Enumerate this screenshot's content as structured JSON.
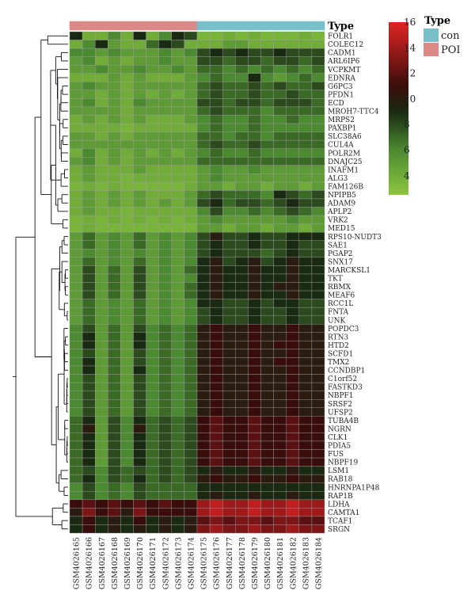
{
  "chart_data": {
    "type": "heatmap",
    "annotation_title": "Type",
    "legend_title": "Type",
    "groups": [
      {
        "name": "con",
        "color": "#79bfc8"
      },
      {
        "name": "POI",
        "color": "#db8a88"
      }
    ],
    "colorbar_ticks": [
      4,
      6,
      8,
      10,
      12,
      14,
      16
    ],
    "color_range": [
      2.5,
      16
    ],
    "color_stops": [
      {
        "value": 2.5,
        "color": "#8cc63f"
      },
      {
        "value": 6,
        "color": "#4c8a32"
      },
      {
        "value": 9,
        "color": "#1a2a12"
      },
      {
        "value": 11,
        "color": "#3a0d0d"
      },
      {
        "value": 16,
        "color": "#e02323"
      }
    ],
    "columns": [
      "GSM4026165",
      "GSM4026166",
      "GSM4026167",
      "GSM4026168",
      "GSM4026169",
      "GSM4026170",
      "GSM4026171",
      "GSM4026172",
      "GSM4026173",
      "GSM4026174",
      "GSM4026175",
      "GSM4026176",
      "GSM4026177",
      "GSM4026178",
      "GSM4026179",
      "GSM4026180",
      "GSM4026181",
      "GSM4026182",
      "GSM4026183",
      "GSM4026184"
    ],
    "column_groups": [
      "POI",
      "POI",
      "POI",
      "POI",
      "POI",
      "POI",
      "POI",
      "POI",
      "POI",
      "POI",
      "con",
      "con",
      "con",
      "con",
      "con",
      "con",
      "con",
      "con",
      "con",
      "con"
    ],
    "rows": [
      "FOLR1",
      "COLEC12",
      "CADM1",
      "ARL6IP6",
      "VCPKMT",
      "EDNRA",
      "G6PC3",
      "PFDN1",
      "ECD",
      "MROH7-TTC4",
      "MRPS2",
      "PAXBP1",
      "SLC38A6",
      "CUL4A",
      "POLR2M",
      "DNAJC25",
      "INAFM1",
      "ALG3",
      "FAM126B",
      "NPIPB5",
      "ADAM9",
      "APLP2",
      "VRK2",
      "MED15",
      "RPS10-NUDT3",
      "SAE1",
      "PGAP2",
      "SNX17",
      "MARCKSL1",
      "TKT",
      "RBMX",
      "MEAF6",
      "RCC1L",
      "FNTA",
      "UNK",
      "POPDC3",
      "RTN3",
      "HTD2",
      "SCFD1",
      "TMX2",
      "CCNDBP1",
      "C1orf52",
      "FASTKD3",
      "NBPF1",
      "SRSF2",
      "UFSP2",
      "TUBA4B",
      "NGRN",
      "CLK1",
      "PDIA5",
      "FUS",
      "NBPF19",
      "LSM1",
      "RAB18",
      "HNRNPA1P48",
      "RAP1B",
      "LDHA",
      "CAMTA1",
      "TCAF1",
      "SRGN"
    ],
    "values": [
      [
        9,
        4,
        4,
        6,
        4,
        9,
        4,
        6,
        9,
        8,
        3.5,
        3.5,
        4,
        3.5,
        4,
        3.5,
        3.5,
        3.5,
        4,
        3.5
      ],
      [
        4,
        6,
        9,
        5,
        4,
        4,
        7,
        9,
        8,
        4,
        4,
        4,
        5,
        5,
        4,
        4,
        4,
        4,
        4,
        4
      ],
      [
        6,
        6,
        5,
        6,
        5,
        5,
        5,
        6,
        5,
        6,
        8,
        9,
        8,
        9,
        8,
        8,
        9,
        8,
        8,
        8
      ],
      [
        5,
        6,
        4,
        5,
        4,
        5,
        5,
        6,
        5,
        5,
        8,
        8,
        7,
        8,
        8,
        7,
        8,
        8,
        7,
        8
      ],
      [
        5,
        5,
        6,
        5,
        5,
        6,
        5,
        5,
        6,
        5,
        7,
        7,
        6,
        7,
        6,
        7,
        6,
        7,
        6,
        7
      ],
      [
        4,
        4,
        4,
        5,
        4,
        5,
        4,
        4,
        4,
        5,
        6,
        7,
        6,
        6,
        9,
        6,
        5,
        6,
        7,
        6
      ],
      [
        5,
        6,
        5,
        5,
        4,
        5,
        5,
        5,
        5,
        5,
        7,
        8,
        7,
        7,
        8,
        7,
        8,
        7,
        7,
        8
      ],
      [
        5,
        5,
        4,
        5,
        4,
        5,
        4,
        5,
        4,
        5,
        7,
        8,
        7,
        7,
        8,
        7,
        7,
        8,
        7,
        7
      ],
      [
        5,
        6,
        4,
        5,
        4,
        6,
        5,
        5,
        5,
        5,
        8,
        8,
        7,
        8,
        8,
        7,
        8,
        8,
        8,
        7
      ],
      [
        5,
        5,
        5,
        5,
        4,
        5,
        5,
        5,
        5,
        5,
        7,
        8,
        7,
        7,
        7,
        6,
        7,
        7,
        7,
        7
      ],
      [
        4,
        5,
        4,
        5,
        4,
        5,
        4,
        4,
        4,
        5,
        6,
        7,
        6,
        6,
        7,
        6,
        6,
        7,
        6,
        6
      ],
      [
        4,
        4,
        4,
        4,
        3.5,
        4,
        4,
        4,
        4,
        4,
        6,
        7,
        6,
        6,
        7,
        6,
        6,
        6,
        6,
        6
      ],
      [
        5,
        5,
        4,
        5,
        4,
        5,
        5,
        5,
        5,
        5,
        7,
        7,
        6,
        7,
        7,
        6,
        7,
        7,
        7,
        7
      ],
      [
        5,
        5,
        5,
        5,
        5,
        5,
        5,
        5,
        5,
        5,
        7,
        8,
        7,
        7,
        8,
        7,
        7,
        7,
        7,
        7
      ],
      [
        4,
        6,
        4,
        5,
        4,
        5,
        4,
        5,
        4,
        5,
        6,
        7,
        6,
        6,
        7,
        6,
        6,
        6,
        6,
        6
      ],
      [
        5,
        6,
        4,
        5,
        4,
        5,
        5,
        5,
        5,
        5,
        7,
        7,
        7,
        7,
        7,
        7,
        7,
        7,
        7,
        7
      ],
      [
        4,
        5,
        4,
        4,
        4,
        5,
        4,
        4,
        4,
        4,
        5,
        6,
        5,
        5,
        6,
        5,
        5,
        5,
        5,
        5
      ],
      [
        4,
        5,
        4,
        4,
        3.5,
        4,
        4,
        4,
        4,
        4,
        5,
        6,
        5,
        5,
        5,
        5,
        5,
        5,
        5,
        5
      ],
      [
        3.5,
        4,
        3.5,
        4,
        3.5,
        3.5,
        3.5,
        3.5,
        3.5,
        4,
        5,
        5,
        4,
        5,
        5,
        4,
        5,
        5,
        4,
        5
      ],
      [
        4,
        5,
        4,
        5,
        4,
        5,
        4,
        4,
        4,
        5,
        7,
        8,
        7,
        7,
        7,
        6,
        9,
        8,
        7,
        8
      ],
      [
        4,
        5,
        4,
        5,
        4,
        5,
        4,
        5,
        4,
        5,
        8,
        9,
        7,
        8,
        8,
        7,
        8,
        9,
        8,
        8
      ],
      [
        4,
        5,
        4,
        4,
        3.5,
        4,
        4,
        4,
        4,
        4,
        6,
        8,
        6,
        6,
        7,
        6,
        7,
        8,
        7,
        6
      ],
      [
        3.5,
        4,
        3.5,
        4,
        3.5,
        4,
        3.5,
        4,
        3.5,
        4,
        5,
        6,
        5,
        5,
        5,
        5,
        5,
        6,
        5,
        5
      ],
      [
        3.5,
        4,
        3.5,
        3.5,
        3.5,
        3.5,
        3.5,
        3.5,
        3.5,
        3.5,
        5,
        5,
        4,
        5,
        5,
        4,
        5,
        5,
        4,
        5
      ],
      [
        5,
        7,
        5,
        6,
        5,
        7,
        5,
        6,
        5,
        6,
        8,
        10,
        8,
        8,
        9,
        8,
        8,
        9,
        9,
        9
      ],
      [
        5,
        7,
        5,
        6,
        5,
        7,
        5,
        6,
        5,
        6,
        8,
        9,
        8,
        8,
        9,
        8,
        8,
        9,
        8,
        8
      ],
      [
        5,
        6,
        5,
        6,
        5,
        6,
        5,
        6,
        5,
        6,
        8,
        9,
        8,
        8,
        8,
        7,
        8,
        9,
        8,
        8
      ],
      [
        5,
        7,
        5,
        6,
        5,
        7,
        5,
        6,
        5,
        6,
        9,
        10,
        8,
        9,
        10,
        8,
        9,
        10,
        9,
        9
      ],
      [
        5,
        8,
        5,
        7,
        5,
        8,
        5,
        6,
        5,
        7,
        9,
        10,
        9,
        9,
        10,
        9,
        9,
        10,
        9,
        9
      ],
      [
        5,
        8,
        5,
        7,
        5,
        8,
        5,
        6,
        5,
        6,
        9,
        10,
        9,
        9,
        10,
        9,
        9,
        10,
        9,
        9
      ],
      [
        5,
        8,
        5,
        7,
        5,
        8,
        5,
        6,
        5,
        7,
        9,
        10,
        9,
        9,
        10,
        9,
        10,
        10,
        9,
        9
      ],
      [
        5,
        8,
        5,
        7,
        5,
        8,
        5,
        6,
        5,
        7,
        9,
        10,
        9,
        9,
        10,
        9,
        9,
        10,
        9,
        9
      ],
      [
        5,
        7,
        5,
        6,
        5,
        7,
        5,
        6,
        5,
        6,
        9,
        9,
        8,
        8,
        9,
        8,
        9,
        9,
        8,
        8
      ],
      [
        5,
        7,
        5,
        6,
        5,
        7,
        5,
        6,
        5,
        6,
        8,
        9,
        8,
        8,
        9,
        8,
        8,
        9,
        8,
        8
      ],
      [
        5,
        7,
        5,
        6,
        5,
        7,
        5,
        6,
        5,
        6,
        8,
        9,
        8,
        8,
        9,
        8,
        8,
        9,
        8,
        8
      ],
      [
        6,
        8,
        5,
        7,
        5,
        8,
        6,
        7,
        6,
        7,
        10,
        11,
        10,
        10,
        11,
        10,
        10,
        11,
        10,
        10
      ],
      [
        6,
        9,
        5,
        7,
        5,
        9,
        6,
        7,
        6,
        7,
        10,
        11,
        10,
        10,
        11,
        10,
        10,
        11,
        10,
        10
      ],
      [
        6,
        9,
        5,
        7,
        5,
        9,
        6,
        7,
        6,
        7,
        10,
        11,
        10,
        10,
        11,
        10,
        11,
        11,
        10,
        10
      ],
      [
        6,
        8,
        5,
        7,
        5,
        8,
        6,
        7,
        6,
        7,
        10,
        11,
        10,
        10,
        11,
        10,
        10,
        11,
        10,
        10
      ],
      [
        6,
        9,
        5,
        7,
        5,
        8,
        6,
        7,
        6,
        7,
        10,
        11,
        10,
        10,
        11,
        10,
        11,
        11,
        10,
        10
      ],
      [
        6,
        9,
        5,
        7,
        5,
        9,
        6,
        7,
        6,
        7,
        10,
        11,
        10,
        10,
        11,
        10,
        10,
        11,
        10,
        10
      ],
      [
        6,
        8,
        5,
        7,
        5,
        8,
        6,
        7,
        6,
        7,
        10,
        11,
        10,
        10,
        11,
        10,
        10,
        11,
        10,
        10
      ],
      [
        6,
        8,
        5,
        7,
        5,
        8,
        6,
        7,
        6,
        7,
        10,
        11,
        10,
        10,
        11,
        10,
        10,
        11,
        10,
        10
      ],
      [
        6,
        8,
        5,
        7,
        5,
        8,
        6,
        7,
        6,
        7,
        10,
        11,
        10,
        10,
        11,
        10,
        10,
        11,
        10,
        10
      ],
      [
        6,
        8,
        5,
        7,
        5,
        8,
        6,
        7,
        6,
        7,
        10,
        11,
        10,
        10,
        11,
        10,
        10,
        11,
        10,
        10
      ],
      [
        6,
        8,
        5,
        7,
        5,
        8,
        6,
        7,
        6,
        7,
        10,
        11,
        10,
        10,
        11,
        10,
        10,
        11,
        10,
        10
      ],
      [
        7,
        9,
        5,
        8,
        6,
        9,
        7,
        8,
        7,
        8,
        11,
        12,
        11,
        11,
        12,
        11,
        11,
        12,
        11,
        11
      ],
      [
        7,
        10,
        5,
        8,
        6,
        10,
        7,
        8,
        7,
        8,
        11,
        12,
        11,
        11,
        12,
        11,
        11,
        12,
        11,
        11
      ],
      [
        7,
        9,
        5,
        8,
        6,
        9,
        7,
        8,
        7,
        8,
        11,
        12,
        11,
        11,
        12,
        11,
        11,
        12,
        11,
        11
      ],
      [
        7,
        9,
        5,
        8,
        6,
        9,
        7,
        8,
        7,
        8,
        11,
        12,
        11,
        11,
        12,
        11,
        11,
        12,
        11,
        11
      ],
      [
        7,
        9,
        5,
        8,
        6,
        9,
        7,
        8,
        7,
        8,
        11,
        12,
        11,
        11,
        12,
        11,
        11,
        12,
        11,
        11
      ],
      [
        7,
        9,
        5,
        8,
        6,
        9,
        7,
        8,
        7,
        8,
        11,
        12,
        11,
        11,
        12,
        11,
        11,
        12,
        11,
        11
      ],
      [
        7,
        8,
        6,
        8,
        7,
        8,
        7,
        8,
        7,
        8,
        9,
        10,
        9,
        9,
        10,
        9,
        9,
        10,
        9,
        9
      ],
      [
        7,
        9,
        6,
        8,
        7,
        9,
        7,
        8,
        7,
        8,
        10,
        11,
        10,
        10,
        11,
        10,
        10,
        11,
        10,
        10
      ],
      [
        6,
        8,
        6,
        7,
        6,
        8,
        7,
        7,
        7,
        7,
        9,
        9,
        9,
        9,
        9,
        9,
        9,
        9,
        9,
        9
      ],
      [
        6,
        8,
        6,
        7,
        6,
        8,
        7,
        7,
        7,
        7,
        9,
        10,
        9,
        9,
        10,
        9,
        9,
        10,
        9,
        9
      ],
      [
        11,
        12,
        11,
        12,
        11,
        12,
        11,
        12,
        11,
        11,
        14,
        15,
        14,
        14,
        15,
        14,
        14,
        15,
        14,
        14
      ],
      [
        10,
        13,
        11,
        12,
        10,
        13,
        11,
        11,
        11,
        11,
        14,
        15,
        14,
        14,
        15,
        14,
        14,
        15,
        14,
        14
      ],
      [
        9,
        11,
        9,
        10,
        9,
        11,
        9,
        10,
        9,
        10,
        12,
        13,
        12,
        13,
        13,
        12,
        13,
        13,
        12,
        12
      ],
      [
        9,
        11,
        9,
        10,
        9,
        10,
        9,
        10,
        9,
        10,
        13,
        14,
        13,
        13,
        14,
        13,
        13,
        14,
        13,
        13
      ]
    ]
  }
}
